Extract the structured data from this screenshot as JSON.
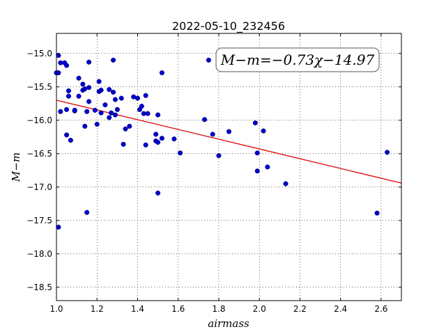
{
  "chart_data": {
    "type": "scatter",
    "title": "2022-05-10_232456",
    "xlabel": "airmass",
    "ylabel": "M−m",
    "xlim": [
      1.0,
      2.7
    ],
    "ylim": [
      -18.7,
      -14.7
    ],
    "y_inverted": true,
    "grid": true,
    "x_ticks": [
      "1.0",
      "1.2",
      "1.4",
      "1.6",
      "1.8",
      "2.0",
      "2.2",
      "2.4",
      "2.6"
    ],
    "y_ticks": [
      "−15.0",
      "−15.5",
      "−16.0",
      "−16.5",
      "−17.0",
      "−17.5",
      "−18.0",
      "−18.5"
    ],
    "annotation": "M−m=−0.73χ−14.97",
    "fit": {
      "slope": -0.73,
      "intercept": -14.97
    },
    "point_color": "#0000cc",
    "fit_color": "#dd0000",
    "points": [
      [
        1.0,
        -15.29
      ],
      [
        1.01,
        -15.03
      ],
      [
        1.01,
        -15.29
      ],
      [
        1.01,
        -17.6
      ],
      [
        1.02,
        -15.14
      ],
      [
        1.02,
        -15.87
      ],
      [
        1.04,
        -15.14
      ],
      [
        1.05,
        -15.84
      ],
      [
        1.05,
        -15.18
      ],
      [
        1.05,
        -16.22
      ],
      [
        1.06,
        -15.56
      ],
      [
        1.06,
        -15.64
      ],
      [
        1.07,
        -16.3
      ],
      [
        1.09,
        -15.86
      ],
      [
        1.09,
        -15.85
      ],
      [
        1.11,
        -15.37
      ],
      [
        1.11,
        -15.64
      ],
      [
        1.13,
        -15.55
      ],
      [
        1.13,
        -15.46
      ],
      [
        1.14,
        -15.53
      ],
      [
        1.14,
        -16.09
      ],
      [
        1.15,
        -17.38
      ],
      [
        1.15,
        -15.87
      ],
      [
        1.16,
        -15.13
      ],
      [
        1.16,
        -15.51
      ],
      [
        1.16,
        -15.72
      ],
      [
        1.19,
        -15.85
      ],
      [
        1.2,
        -16.06
      ],
      [
        1.21,
        -15.42
      ],
      [
        1.21,
        -15.57
      ],
      [
        1.22,
        -15.89
      ],
      [
        1.22,
        -15.55
      ],
      [
        1.24,
        -15.77
      ],
      [
        1.26,
        -15.54
      ],
      [
        1.26,
        -15.96
      ],
      [
        1.27,
        -15.89
      ],
      [
        1.28,
        -15.1
      ],
      [
        1.28,
        -15.58
      ],
      [
        1.29,
        -15.92
      ],
      [
        1.29,
        -15.69
      ],
      [
        1.3,
        -15.84
      ],
      [
        1.32,
        -15.67
      ],
      [
        1.33,
        -16.36
      ],
      [
        1.34,
        -16.13
      ],
      [
        1.36,
        -16.09
      ],
      [
        1.38,
        -15.65
      ],
      [
        1.4,
        -15.67
      ],
      [
        1.41,
        -15.84
      ],
      [
        1.42,
        -15.79
      ],
      [
        1.43,
        -15.9
      ],
      [
        1.44,
        -16.37
      ],
      [
        1.44,
        -15.63
      ],
      [
        1.45,
        -15.9
      ],
      [
        1.49,
        -16.21
      ],
      [
        1.49,
        -16.31
      ],
      [
        1.5,
        -15.92
      ],
      [
        1.5,
        -16.33
      ],
      [
        1.5,
        -17.09
      ],
      [
        1.52,
        -16.27
      ],
      [
        1.52,
        -15.29
      ],
      [
        1.58,
        -16.28
      ],
      [
        1.61,
        -16.49
      ],
      [
        1.73,
        -15.99
      ],
      [
        1.75,
        -15.1
      ],
      [
        1.77,
        -16.21
      ],
      [
        1.8,
        -16.53
      ],
      [
        1.85,
        -16.17
      ],
      [
        1.98,
        -16.04
      ],
      [
        1.99,
        -16.49
      ],
      [
        1.99,
        -16.76
      ],
      [
        2.02,
        -16.16
      ],
      [
        2.04,
        -16.7
      ],
      [
        2.13,
        -16.95
      ],
      [
        2.58,
        -17.39
      ],
      [
        2.63,
        -16.48
      ]
    ]
  }
}
